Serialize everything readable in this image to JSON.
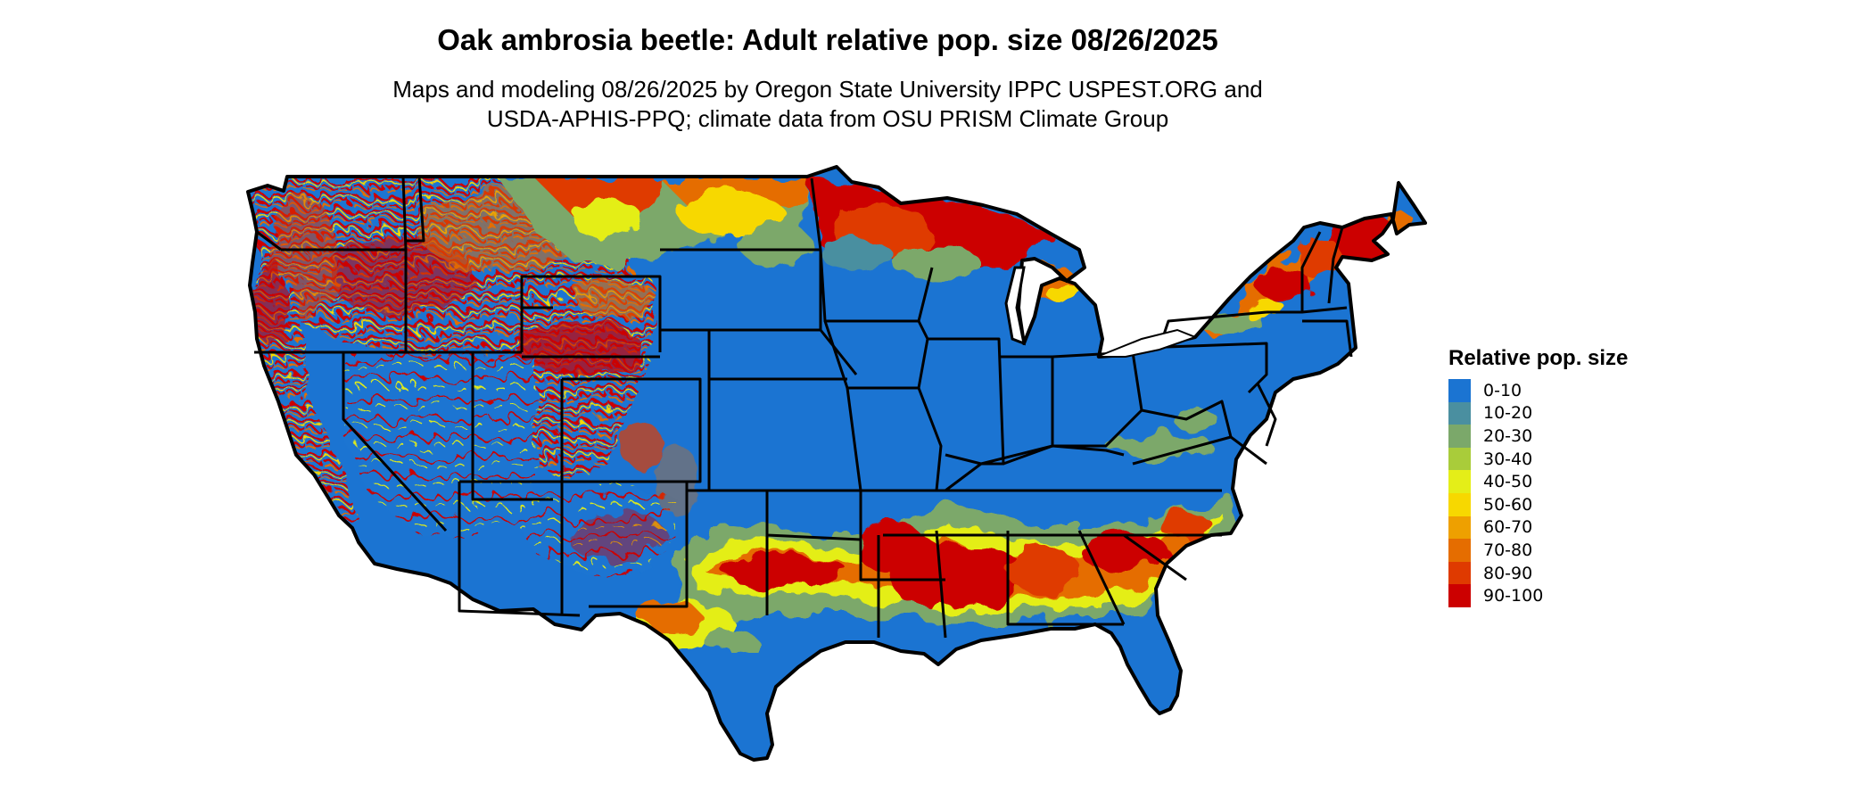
{
  "title": "Oak ambrosia beetle: Adult relative pop. size 08/26/2025",
  "subtitle_line1": "Maps and modeling 08/26/2025 by Oregon State University IPPC USPEST.ORG and",
  "subtitle_line2": "USDA-APHIS-PPQ; climate data from OSU PRISM Climate Group",
  "map": {
    "region": "Contiguous United States",
    "base_color": "#1b74d2",
    "border_color": "#000000"
  },
  "legend": {
    "title": "Relative pop. size",
    "items": [
      {
        "label": "0-10",
        "color": "#1b74d2"
      },
      {
        "label": "10-20",
        "color": "#4a8fa0"
      },
      {
        "label": "20-30",
        "color": "#7ba86a"
      },
      {
        "label": "30-40",
        "color": "#a9cc3a"
      },
      {
        "label": "40-50",
        "color": "#e4ee18"
      },
      {
        "label": "50-60",
        "color": "#f7d800"
      },
      {
        "label": "60-70",
        "color": "#eea000"
      },
      {
        "label": "70-80",
        "color": "#e56d00"
      },
      {
        "label": "80-90",
        "color": "#df3a00"
      },
      {
        "label": "90-100",
        "color": "#cc0000"
      }
    ]
  }
}
